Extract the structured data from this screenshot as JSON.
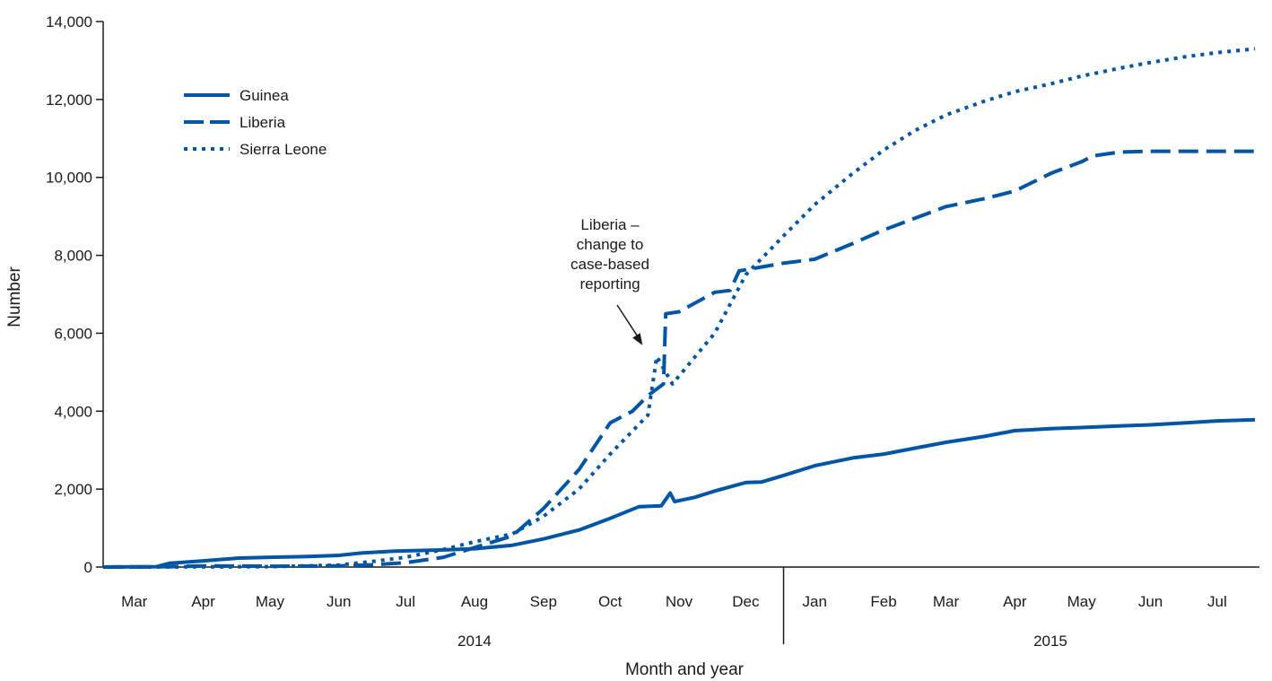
{
  "chart_data": {
    "type": "line",
    "title": "",
    "xlabel": "Month and year",
    "ylabel": "Number",
    "ylim": [
      0,
      14000
    ],
    "y_ticks": [
      0,
      2000,
      4000,
      6000,
      8000,
      10000,
      12000,
      14000
    ],
    "y_tick_labels": [
      "0",
      "2,000",
      "4,000",
      "6,000",
      "8,000",
      "10,000",
      "12,000",
      "14,000"
    ],
    "x_range": [
      "2014-03-01",
      "2015-08-03"
    ],
    "months": [
      {
        "label": "Mar",
        "date": "2014-03-15"
      },
      {
        "label": "Apr",
        "date": "2014-04-15"
      },
      {
        "label": "May",
        "date": "2014-05-15"
      },
      {
        "label": "Jun",
        "date": "2014-06-15"
      },
      {
        "label": "Jul",
        "date": "2014-07-15"
      },
      {
        "label": "Aug",
        "date": "2014-08-15"
      },
      {
        "label": "Sep",
        "date": "2014-09-15"
      },
      {
        "label": "Oct",
        "date": "2014-10-15"
      },
      {
        "label": "Nov",
        "date": "2014-11-15"
      },
      {
        "label": "Dec",
        "date": "2014-12-15"
      },
      {
        "label": "Jan",
        "date": "2015-01-15"
      },
      {
        "label": "Feb",
        "date": "2015-02-15"
      },
      {
        "label": "Mar",
        "date": "2015-03-15"
      },
      {
        "label": "Apr",
        "date": "2015-04-15"
      },
      {
        "label": "May",
        "date": "2015-05-15"
      },
      {
        "label": "Jun",
        "date": "2015-06-15"
      },
      {
        "label": "Jul",
        "date": "2015-07-15"
      }
    ],
    "years": [
      {
        "label": "2014",
        "date": "2014-08-15"
      },
      {
        "label": "2015",
        "date": "2015-05-01"
      }
    ],
    "year_divider": "2015-01-01",
    "legend": {
      "placement": "top-left"
    },
    "line_color": "#0055a5",
    "annotation": {
      "lines": [
        "Liberia –",
        "change to",
        "case-based",
        "reporting"
      ],
      "arrow_target": {
        "x": "2014-11-01",
        "y": 5600
      }
    },
    "series": [
      {
        "name": "Guinea",
        "style": "solid",
        "points": [
          [
            "2014-03-01",
            0
          ],
          [
            "2014-03-25",
            10
          ],
          [
            "2014-03-31",
            100
          ],
          [
            "2014-04-15",
            160
          ],
          [
            "2014-05-01",
            230
          ],
          [
            "2014-05-15",
            250
          ],
          [
            "2014-06-01",
            270
          ],
          [
            "2014-06-15",
            300
          ],
          [
            "2014-06-25",
            360
          ],
          [
            "2014-07-10",
            410
          ],
          [
            "2014-08-01",
            440
          ],
          [
            "2014-08-15",
            470
          ],
          [
            "2014-09-01",
            560
          ],
          [
            "2014-09-15",
            720
          ],
          [
            "2014-10-01",
            950
          ],
          [
            "2014-10-15",
            1250
          ],
          [
            "2014-10-28",
            1550
          ],
          [
            "2014-11-07",
            1570
          ],
          [
            "2014-11-11",
            1900
          ],
          [
            "2014-11-13",
            1680
          ],
          [
            "2014-11-22",
            1790
          ],
          [
            "2014-12-01",
            1950
          ],
          [
            "2014-12-15",
            2170
          ],
          [
            "2014-12-22",
            2180
          ],
          [
            "2015-01-01",
            2350
          ],
          [
            "2015-01-15",
            2600
          ],
          [
            "2015-02-01",
            2800
          ],
          [
            "2015-02-15",
            2900
          ],
          [
            "2015-03-01",
            3050
          ],
          [
            "2015-03-15",
            3200
          ],
          [
            "2015-04-01",
            3350
          ],
          [
            "2015-04-15",
            3500
          ],
          [
            "2015-05-01",
            3550
          ],
          [
            "2015-05-15",
            3580
          ],
          [
            "2015-06-01",
            3620
          ],
          [
            "2015-06-15",
            3650
          ],
          [
            "2015-07-01",
            3700
          ],
          [
            "2015-07-15",
            3750
          ],
          [
            "2015-08-01",
            3780
          ]
        ]
      },
      {
        "name": "Liberia",
        "style": "dashed",
        "points": [
          [
            "2014-03-01",
            0
          ],
          [
            "2014-03-31",
            10
          ],
          [
            "2014-04-15",
            30
          ],
          [
            "2014-05-15",
            20
          ],
          [
            "2014-06-15",
            30
          ],
          [
            "2014-07-01",
            60
          ],
          [
            "2014-07-15",
            110
          ],
          [
            "2014-08-01",
            250
          ],
          [
            "2014-08-15",
            500
          ],
          [
            "2014-09-01",
            800
          ],
          [
            "2014-09-15",
            1500
          ],
          [
            "2014-10-01",
            2500
          ],
          [
            "2014-10-15",
            3700
          ],
          [
            "2014-10-25",
            4000
          ],
          [
            "2014-11-01",
            4400
          ],
          [
            "2014-11-08",
            4700
          ],
          [
            "2014-11-09",
            6500
          ],
          [
            "2014-11-15",
            6550
          ],
          [
            "2014-12-01",
            7050
          ],
          [
            "2014-12-08",
            7100
          ],
          [
            "2014-12-12",
            7600
          ],
          [
            "2014-12-22",
            7700
          ],
          [
            "2015-01-01",
            7800
          ],
          [
            "2015-01-15",
            7900
          ],
          [
            "2015-02-01",
            8300
          ],
          [
            "2015-02-15",
            8650
          ],
          [
            "2015-03-01",
            8950
          ],
          [
            "2015-03-15",
            9250
          ],
          [
            "2015-04-01",
            9450
          ],
          [
            "2015-04-15",
            9650
          ],
          [
            "2015-05-01",
            10100
          ],
          [
            "2015-05-15",
            10400
          ],
          [
            "2015-05-20",
            10550
          ],
          [
            "2015-06-01",
            10650
          ],
          [
            "2015-06-15",
            10670
          ],
          [
            "2015-08-01",
            10670
          ]
        ]
      },
      {
        "name": "Sierra Leone",
        "style": "dotted",
        "points": [
          [
            "2014-03-01",
            0
          ],
          [
            "2014-05-15",
            10
          ],
          [
            "2014-06-15",
            50
          ],
          [
            "2014-07-01",
            150
          ],
          [
            "2014-07-15",
            250
          ],
          [
            "2014-08-01",
            450
          ],
          [
            "2014-08-15",
            650
          ],
          [
            "2014-09-01",
            850
          ],
          [
            "2014-09-15",
            1300
          ],
          [
            "2014-10-01",
            2000
          ],
          [
            "2014-10-15",
            2900
          ],
          [
            "2014-11-01",
            3900
          ],
          [
            "2014-11-05",
            5400
          ],
          [
            "2014-11-12",
            4700
          ],
          [
            "2014-12-01",
            6000
          ],
          [
            "2014-12-15",
            7500
          ],
          [
            "2015-01-01",
            8500
          ],
          [
            "2015-01-15",
            9300
          ],
          [
            "2015-02-01",
            10100
          ],
          [
            "2015-02-15",
            10700
          ],
          [
            "2015-03-01",
            11200
          ],
          [
            "2015-03-15",
            11600
          ],
          [
            "2015-04-01",
            11950
          ],
          [
            "2015-04-15",
            12200
          ],
          [
            "2015-05-01",
            12400
          ],
          [
            "2015-05-15",
            12600
          ],
          [
            "2015-06-01",
            12800
          ],
          [
            "2015-06-15",
            12950
          ],
          [
            "2015-07-01",
            13100
          ],
          [
            "2015-07-15",
            13200
          ],
          [
            "2015-08-01",
            13300
          ]
        ]
      }
    ]
  }
}
